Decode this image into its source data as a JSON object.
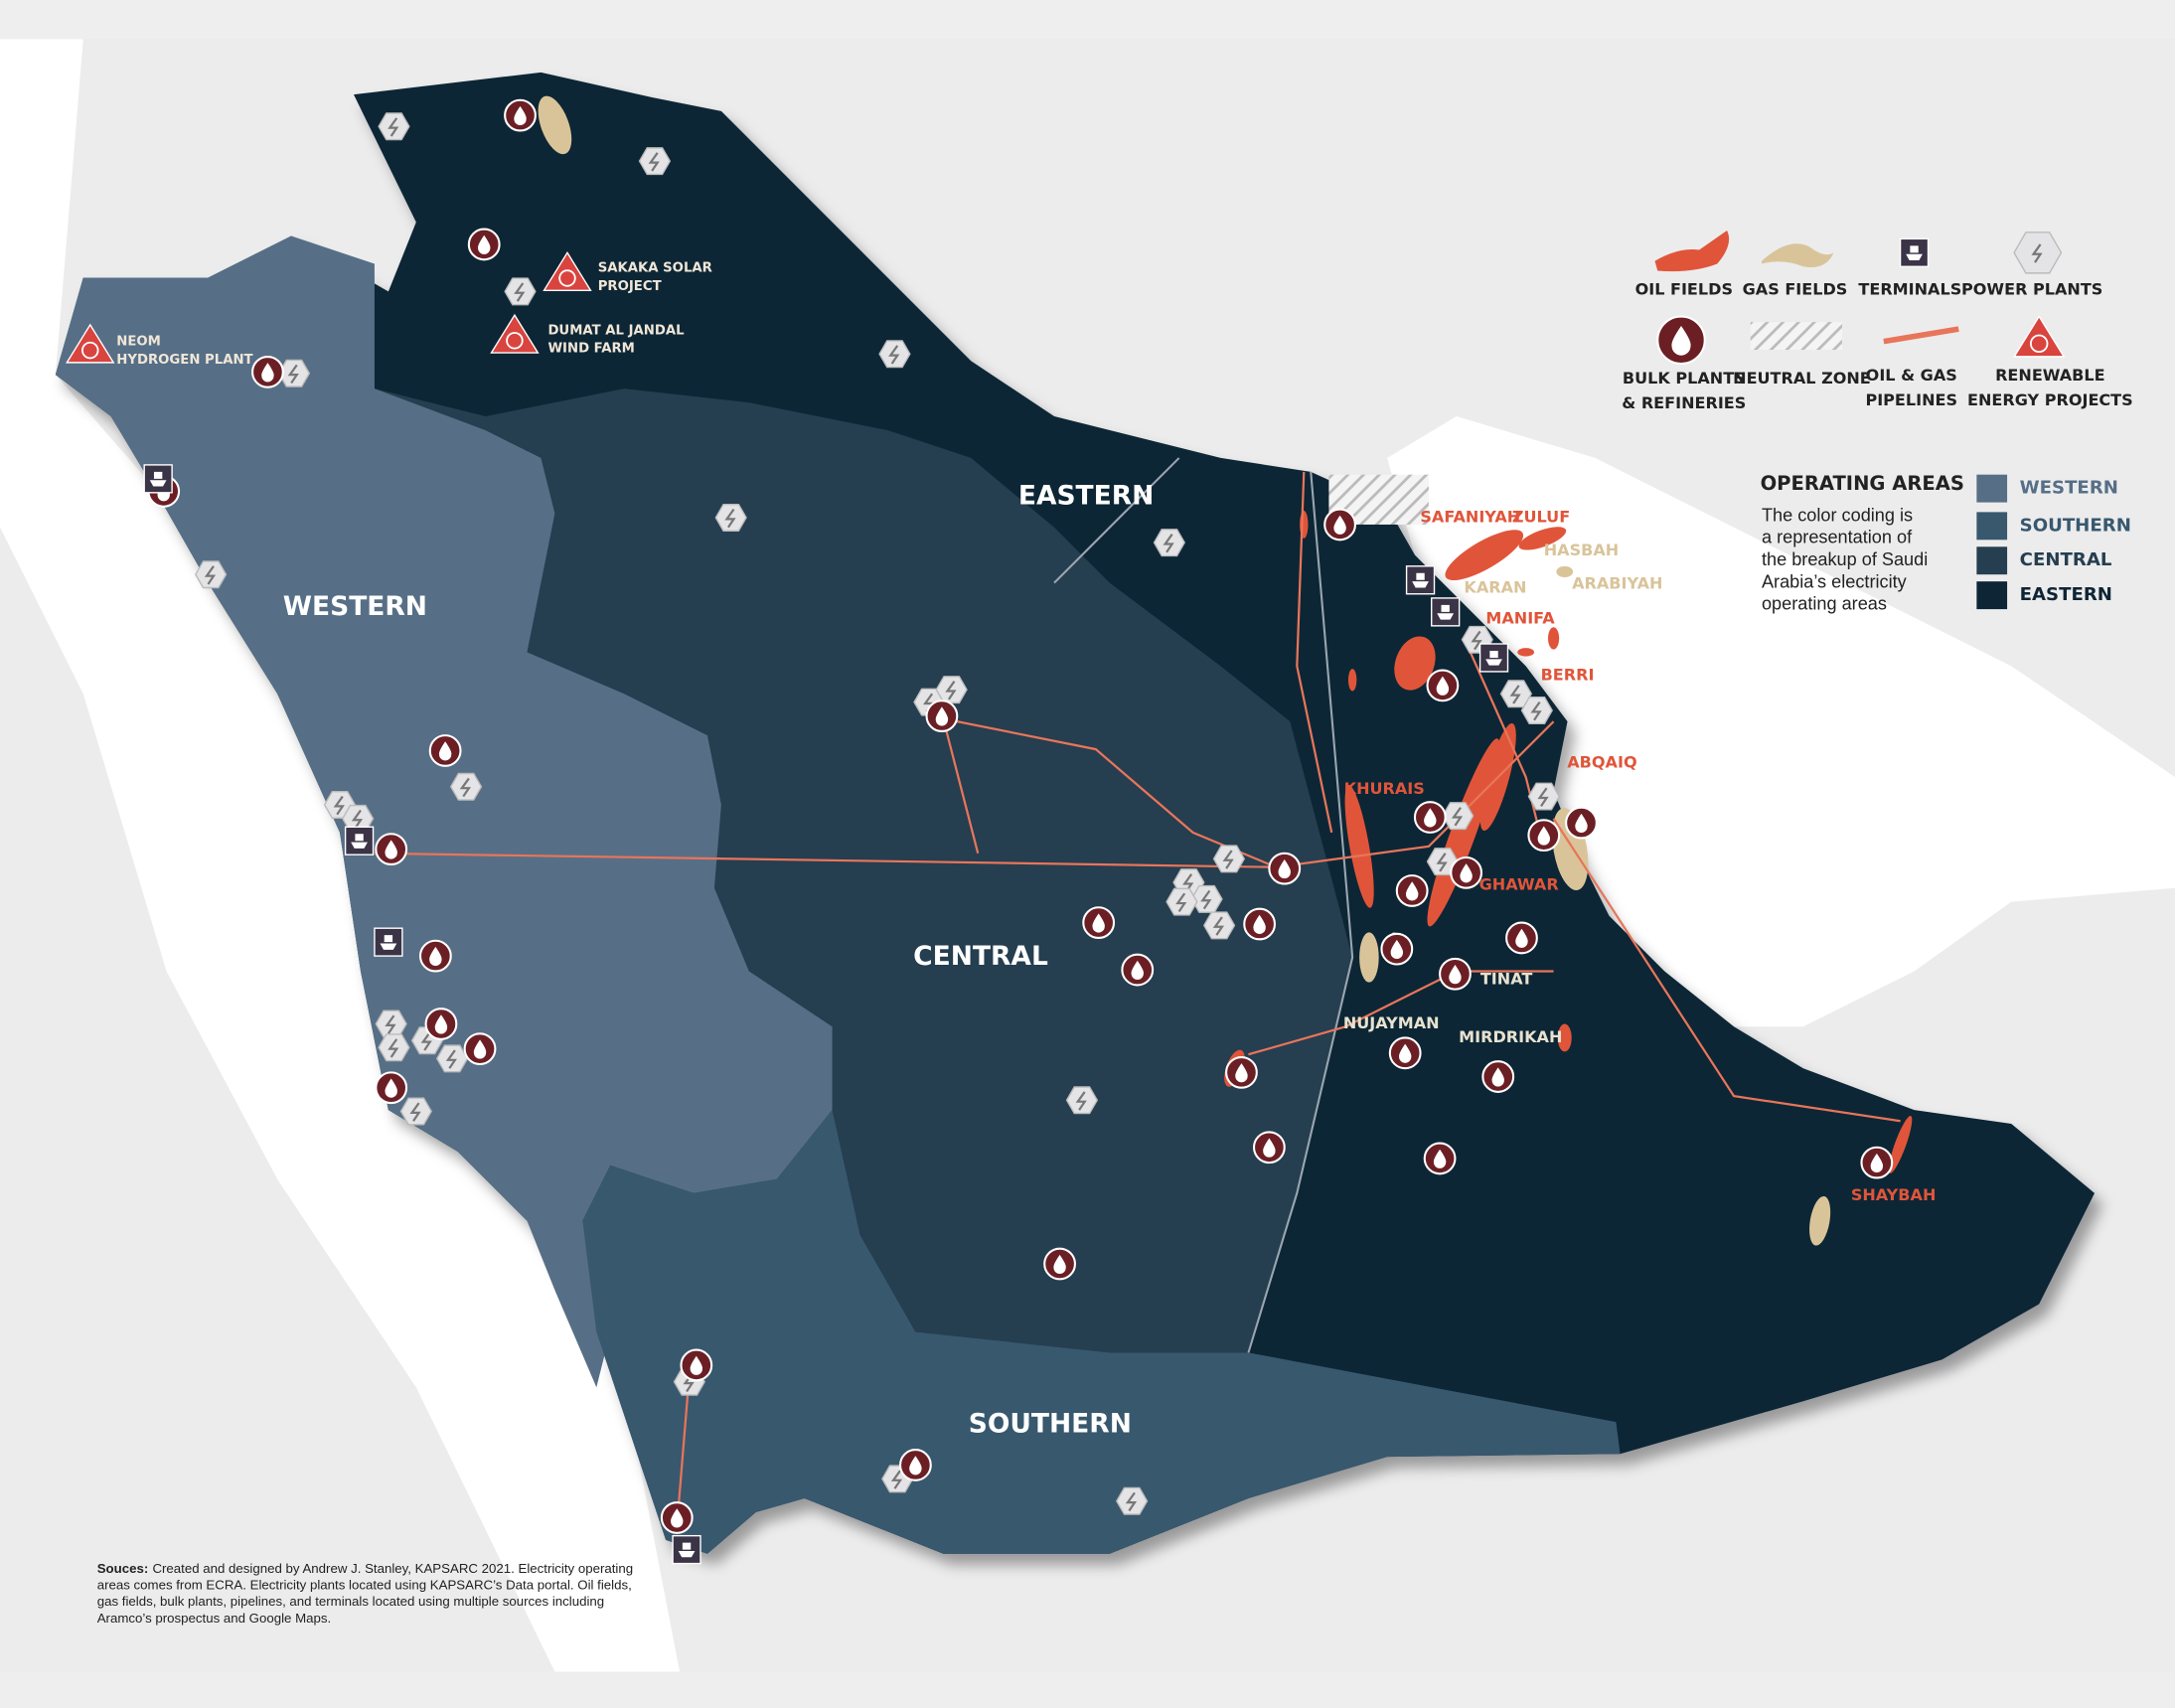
{
  "regions": [
    {
      "label": "WESTERN"
    },
    {
      "label": "EASTERN"
    },
    {
      "label": "CENTRAL"
    },
    {
      "label": "SOUTHERN"
    }
  ],
  "fields": [
    {
      "label": "SAFANIYAH",
      "color": "#e0553a"
    },
    {
      "label": "ZULUF",
      "color": "#e0553a"
    },
    {
      "label": "HASBAH",
      "color": "#d9c49a"
    },
    {
      "label": "ARABIYAH",
      "color": "#d9c49a"
    },
    {
      "label": "KARAN",
      "color": "#d9c49a"
    },
    {
      "label": "MANIFA",
      "color": "#e0553a"
    },
    {
      "label": "BERRI",
      "color": "#e0553a"
    },
    {
      "label": "ABQAIQ",
      "color": "#e0553a"
    },
    {
      "label": "KHURAIS",
      "color": "#e0553a"
    },
    {
      "label": "GHAWAR",
      "color": "#e0553a"
    },
    {
      "label": "TINAT",
      "color": "#e8e2d0"
    },
    {
      "label": "NUJAYMAN",
      "color": "#e8e2d0"
    },
    {
      "label": "MIRDRIKAH",
      "color": "#e8e2d0"
    },
    {
      "label": "SHAYBAH",
      "color": "#e0553a"
    }
  ],
  "projects": [
    {
      "lines": [
        "NEOM",
        "HYDROGEN PLANT"
      ]
    },
    {
      "lines": [
        "SAKAKA SOLAR",
        "PROJECT"
      ]
    },
    {
      "lines": [
        "DUMAT AL JANDAL",
        "WIND FARM"
      ]
    }
  ],
  "legend": [
    {
      "lines": [
        "OIL FIELDS"
      ]
    },
    {
      "lines": [
        "GAS FIELDS"
      ]
    },
    {
      "lines": [
        "TERMINALS"
      ]
    },
    {
      "lines": [
        "POWER PLANTS"
      ]
    },
    {
      "lines": [
        "BULK PLANTS",
        "& REFINERIES"
      ]
    },
    {
      "lines": [
        "NEUTRAL ZONE"
      ]
    },
    {
      "lines": [
        "OIL & GAS",
        "PIPELINES"
      ]
    },
    {
      "lines": [
        "RENEWABLE",
        "ENERGY PROJECTS"
      ]
    }
  ],
  "operating_areas": {
    "title": "OPERATING AREAS",
    "description": [
      "The color coding is",
      "a representation of",
      "the breakup of Saudi",
      "Arabia’s electricity",
      "operating areas"
    ],
    "items": [
      {
        "label": "WESTERN",
        "color": "#566f86"
      },
      {
        "label": "SOUTHERN",
        "color": "#38586e"
      },
      {
        "label": "CENTRAL",
        "color": "#253e50"
      },
      {
        "label": "EASTERN",
        "color": "#0e2535"
      }
    ]
  },
  "sources": {
    "label": "Souces:",
    "lines": [
      "Created and designed by Andrew J. Stanley, KAPSARC 2021. Electricity operating",
      "areas comes from ECRA. Electricity plants located using KAPSARC’s Data portal. Oil fields,",
      "gas fields, bulk plants, pipelines, and terminals located using multiple sources including",
      "Aramco’s prospectus and Google Maps."
    ]
  }
}
